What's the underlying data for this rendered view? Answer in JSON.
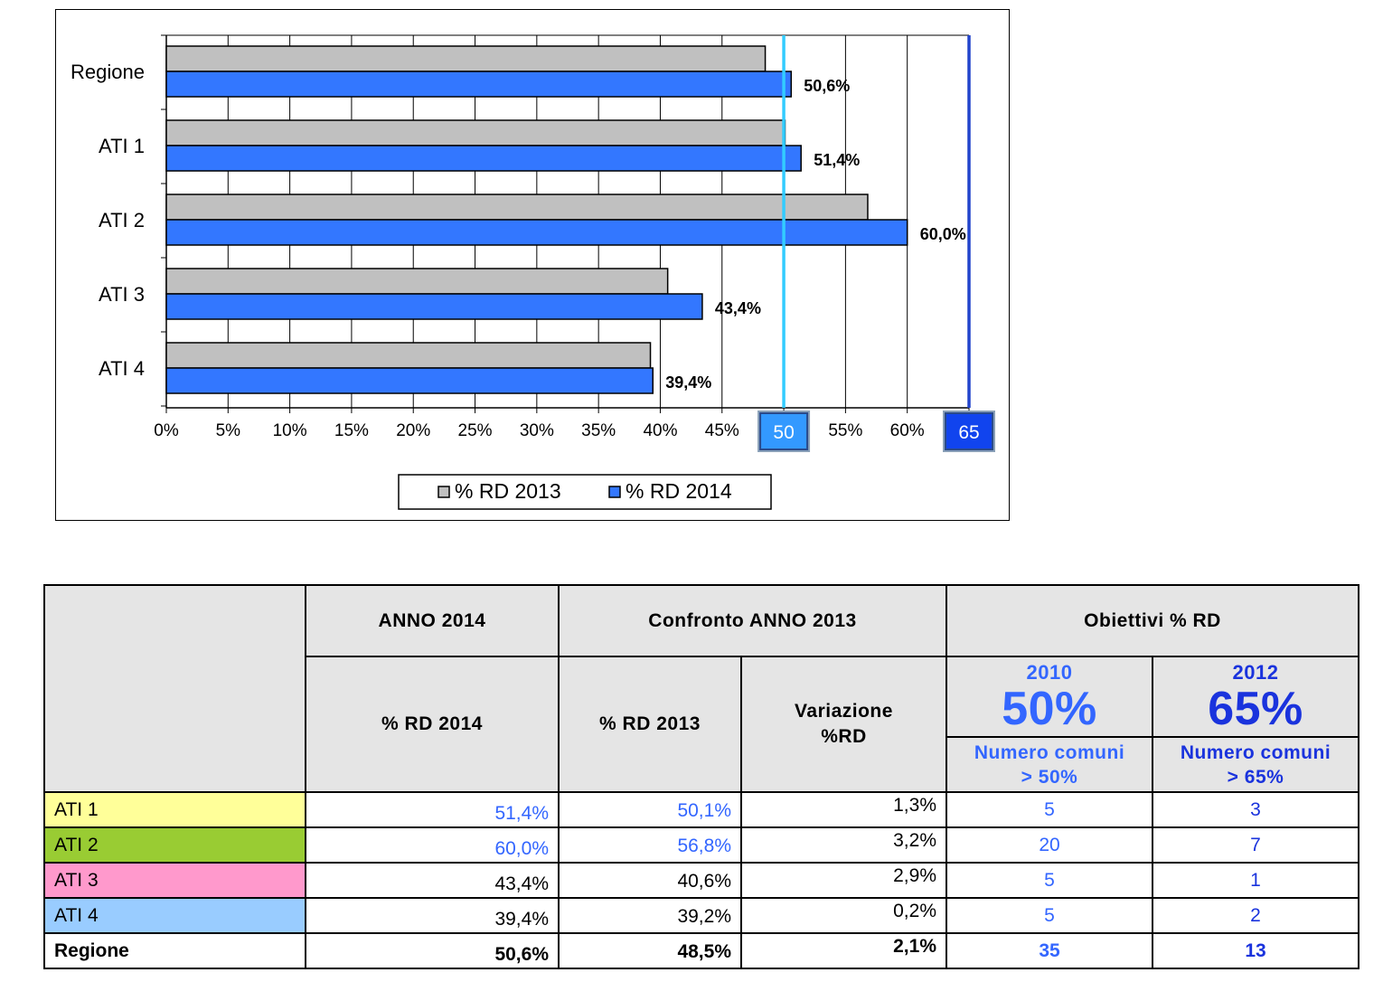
{
  "chart_data": {
    "type": "bar",
    "orientation": "horizontal",
    "categories": [
      "Regione",
      "ATI 1",
      "ATI 2",
      "ATI 3",
      "ATI 4"
    ],
    "series": [
      {
        "name": "% RD 2013",
        "color": "#c0c0c0",
        "values": [
          48.5,
          50.1,
          56.8,
          40.6,
          39.2
        ]
      },
      {
        "name": "% RD 2014",
        "color": "#3377ff",
        "values": [
          50.6,
          51.4,
          60.0,
          43.4,
          39.4
        ]
      }
    ],
    "data_labels": [
      "50,6%",
      "51,4%",
      "60,0%",
      "43,4%",
      "39,4%"
    ],
    "x_ticks": [
      "0%",
      "5%",
      "10%",
      "15%",
      "20%",
      "25%",
      "30%",
      "35%",
      "40%",
      "45%",
      "50%",
      "55%",
      "60%",
      "65%"
    ],
    "xlim": [
      0,
      65
    ],
    "grid": "vertical",
    "legend_position": "bottom",
    "reference_lines": [
      {
        "value": 50,
        "label": "50",
        "color": "#33ccff",
        "box_color": "#3399ff"
      },
      {
        "value": 65,
        "label": "65",
        "color": "#2244cc",
        "box_color": "#1144ee"
      }
    ]
  },
  "table": {
    "headers": {
      "anno2014": "ANNO 2014",
      "confronto": "Confronto ANNO 2013",
      "obiettivi": "Obiettivi % RD",
      "rd2014": "% RD 2014",
      "rd2013": "% RD 2013",
      "variazione_1": "Variazione",
      "variazione_2": "%RD",
      "obj1_year": "2010",
      "obj1_pct": "50%",
      "obj1_sub_1": "Numero comuni",
      "obj1_sub_2": "> 50%",
      "obj2_year": "2012",
      "obj2_pct": "65%",
      "obj2_sub_1": "Numero comuni",
      "obj2_sub_2": "> 65%"
    },
    "rows": [
      {
        "name": "ATI 1",
        "color": "#ffff99",
        "rd2014": "51,4%",
        "rd2013": "50,1%",
        "variazione": "1,3%",
        "n50": "5",
        "n65": "3",
        "rd2014_blue": true,
        "rd2013_blue": true
      },
      {
        "name": "ATI 2",
        "color": "#99cc33",
        "rd2014": "60,0%",
        "rd2013": "56,8%",
        "variazione": "3,2%",
        "n50": "20",
        "n65": "7",
        "rd2014_blue": true,
        "rd2013_blue": true
      },
      {
        "name": "ATI 3",
        "color": "#ff99cc",
        "rd2014": "43,4%",
        "rd2013": "40,6%",
        "variazione": "2,9%",
        "n50": "5",
        "n65": "1",
        "rd2014_blue": false,
        "rd2013_blue": false
      },
      {
        "name": "ATI 4",
        "color": "#99ccff",
        "rd2014": "39,4%",
        "rd2013": "39,2%",
        "variazione": "0,2%",
        "n50": "5",
        "n65": "2",
        "rd2014_blue": false,
        "rd2013_blue": false
      },
      {
        "name": "Regione",
        "color": "#ffffff",
        "rd2014": "50,6%",
        "rd2013": "48,5%",
        "variazione": "2,1%",
        "n50": "35",
        "n65": "13",
        "rd2014_blue": false,
        "rd2013_blue": false,
        "bold": true
      }
    ]
  }
}
